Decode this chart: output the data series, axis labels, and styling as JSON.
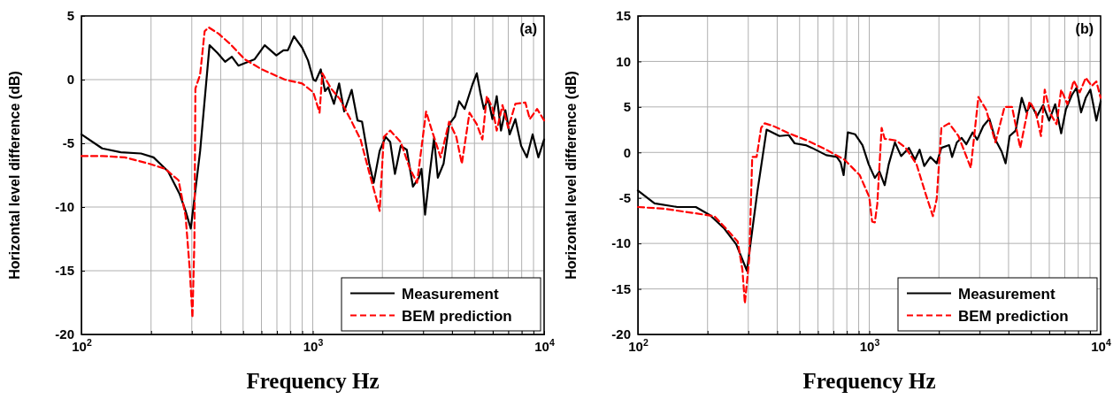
{
  "chart_data": [
    {
      "type": "line",
      "xlabel": "Frequency Hz",
      "ylabel": "Horizontal level difference (dB)",
      "log": "x",
      "grid": true,
      "legend": "bottom right",
      "annotations": [
        "(a)"
      ],
      "xlim": [
        100,
        10000
      ],
      "ylim": [
        -20,
        5
      ],
      "xticks": [
        {
          "value": 100,
          "label": "10$^{2}$"
        },
        {
          "value": 200,
          "label": null
        },
        {
          "value": 300,
          "label": null
        },
        {
          "value": 400,
          "label": null
        },
        {
          "value": 500,
          "label": null
        },
        {
          "value": 600,
          "label": null
        },
        {
          "value": 700,
          "label": null
        },
        {
          "value": 800,
          "label": null
        },
        {
          "value": 900,
          "label": null
        },
        {
          "value": 1000,
          "label": "10$^{3}$"
        },
        {
          "value": 2000,
          "label": null
        },
        {
          "value": 3000,
          "label": null
        },
        {
          "value": 4000,
          "label": null
        },
        {
          "value": 5000,
          "label": null
        },
        {
          "value": 6000,
          "label": null
        },
        {
          "value": 7000,
          "label": null
        },
        {
          "value": 8000,
          "label": null
        },
        {
          "value": 9000,
          "label": null
        },
        {
          "value": 10000,
          "label": "10$^{4}$"
        }
      ],
      "yticks": [
        -20,
        -15,
        -10,
        -5,
        0,
        5
      ],
      "series": [
        {
          "name": "Measurement",
          "color": "#000000",
          "line_style": "solid",
          "x": [
            100,
            123,
            148,
            181,
            205,
            237,
            266,
            282,
            297,
            326,
            358,
            387,
            418,
            447,
            477,
            561,
            620,
            696,
            747,
            780,
            830,
            900,
            954,
            1006,
            1030,
            1083,
            1130,
            1166,
            1235,
            1300,
            1367,
            1473,
            1561,
            1633,
            1755,
            1834,
            1946,
            2065,
            2162,
            2266,
            2400,
            2549,
            2711,
            2873,
            2951,
            3058,
            3196,
            3344,
            3472,
            3676,
            3886,
            4118,
            4291,
            4533,
            4898,
            5116,
            5298,
            5488,
            5727,
            5978,
            6240,
            6512,
            6800,
            7100,
            7512,
            7956,
            8424,
            8920,
            9443,
            10000
          ],
          "values": [
            -4.3,
            -5.4,
            -5.7,
            -5.8,
            -6.1,
            -7.2,
            -9.0,
            -10.3,
            -11.7,
            -5.6,
            2.7,
            2.1,
            1.4,
            1.8,
            1.1,
            1.6,
            2.7,
            1.9,
            2.3,
            2.3,
            3.4,
            2.5,
            1.5,
            0.0,
            -0.1,
            0.8,
            -0.9,
            -0.6,
            -1.9,
            -0.3,
            -2.5,
            -0.8,
            -3.2,
            -3.3,
            -6.6,
            -8.1,
            -5.6,
            -4.5,
            -4.9,
            -7.4,
            -5.2,
            -5.5,
            -8.4,
            -7.7,
            -7.0,
            -10.6,
            -7.5,
            -4.6,
            -7.7,
            -6.6,
            -3.5,
            -2.9,
            -1.7,
            -2.3,
            -0.4,
            0.5,
            -1.0,
            -2.3,
            -1.5,
            -3.1,
            -1.3,
            -4.0,
            -2.4,
            -4.3,
            -3.1,
            -5.2,
            -6.1,
            -4.3,
            -6.1,
            -4.7
          ]
        },
        {
          "name": "BEM prediction",
          "color": "#ff0000",
          "line_style": "dashed",
          "x": [
            100,
            123,
            154,
            196,
            230,
            263,
            282,
            294,
            302,
            308,
            311,
            326,
            341,
            355,
            392,
            440,
            508,
            603,
            758,
            900,
            1006,
            1070,
            1100,
            1200,
            1307,
            1473,
            1609,
            1755,
            1946,
            2028,
            2162,
            2400,
            2631,
            2823,
            3090,
            3248,
            3571,
            3886,
            4174,
            4410,
            4759,
            5116,
            5410,
            5652,
            5978,
            6240,
            6608,
            6996,
            7512,
            8301,
            8672,
            9324,
            10000
          ],
          "values": [
            -6.0,
            -6.0,
            -6.1,
            -6.6,
            -7.0,
            -7.9,
            -10.7,
            -14.9,
            -18.7,
            -12.6,
            -0.7,
            0.4,
            3.8,
            4.1,
            3.6,
            2.8,
            1.6,
            0.8,
            0.0,
            -0.3,
            -1.0,
            -2.6,
            0.5,
            -0.7,
            -1.5,
            -3.3,
            -4.7,
            -7.3,
            -10.3,
            -4.5,
            -4.0,
            -4.9,
            -7.0,
            -8.1,
            -2.5,
            -3.8,
            -6.1,
            -3.3,
            -4.5,
            -6.6,
            -2.6,
            -3.5,
            -4.7,
            -1.3,
            -2.2,
            -4.0,
            -2.0,
            -3.8,
            -1.9,
            -1.8,
            -3.1,
            -2.3,
            -3.2
          ]
        }
      ]
    },
    {
      "type": "line",
      "xlabel": "Frequency Hz",
      "ylabel": "Horizontal level difference (dB)",
      "log": "x",
      "grid": true,
      "legend": "bottom right",
      "annotations": [
        "(b)"
      ],
      "xlim": [
        100,
        10000
      ],
      "ylim": [
        -20,
        15
      ],
      "xticks": [
        {
          "value": 100,
          "label": "10$^{2}$"
        },
        {
          "value": 200,
          "label": null
        },
        {
          "value": 300,
          "label": null
        },
        {
          "value": 400,
          "label": null
        },
        {
          "value": 500,
          "label": null
        },
        {
          "value": 600,
          "label": null
        },
        {
          "value": 700,
          "label": null
        },
        {
          "value": 800,
          "label": null
        },
        {
          "value": 900,
          "label": null
        },
        {
          "value": 1000,
          "label": "10$^{3}$"
        },
        {
          "value": 2000,
          "label": null
        },
        {
          "value": 3000,
          "label": null
        },
        {
          "value": 4000,
          "label": null
        },
        {
          "value": 5000,
          "label": null
        },
        {
          "value": 6000,
          "label": null
        },
        {
          "value": 7000,
          "label": null
        },
        {
          "value": 8000,
          "label": null
        },
        {
          "value": 9000,
          "label": null
        },
        {
          "value": 10000,
          "label": "10$^{4}$"
        }
      ],
      "yticks": [
        -20,
        -15,
        -10,
        -5,
        0,
        5,
        10,
        15
      ],
      "series": [
        {
          "name": "Measurement",
          "color": "#000000",
          "line_style": "solid",
          "x": [
            100,
            118,
            148,
            178,
            205,
            235,
            266,
            296,
            328,
            360,
            409,
            449,
            476,
            531,
            565,
            652,
            724,
            752,
            775,
            808,
            868,
            935,
            994,
            1057,
            1107,
            1166,
            1214,
            1291,
            1373,
            1483,
            1577,
            1651,
            1729,
            1839,
            1957,
            2050,
            2214,
            2281,
            2391,
            2507,
            2628,
            2797,
            2928,
            3110,
            3305,
            3511,
            3734,
            3885,
            4043,
            4293,
            4562,
            4780,
            5005,
            5314,
            5643,
            5991,
            6361,
            6754,
            7073,
            7510,
            7864,
            8235,
            8624,
            9031,
            9589,
            10000
          ],
          "values": [
            -4.2,
            -5.6,
            -6.0,
            -6.0,
            -6.9,
            -8.3,
            -10.1,
            -13.0,
            -4.4,
            2.5,
            1.8,
            1.9,
            1.0,
            0.8,
            0.5,
            -0.3,
            -0.5,
            -1.1,
            -2.5,
            2.2,
            2.0,
            0.8,
            -1.3,
            -2.8,
            -2.1,
            -3.6,
            -1.3,
            1.1,
            -0.4,
            0.5,
            -0.8,
            0.3,
            -1.5,
            -0.5,
            -1.2,
            0.5,
            0.8,
            -0.5,
            1.1,
            1.6,
            0.9,
            2.2,
            1.4,
            2.9,
            3.7,
            1.4,
            0.1,
            -1.2,
            1.8,
            2.4,
            6.0,
            4.4,
            5.3,
            4.0,
            5.2,
            3.5,
            5.3,
            2.1,
            4.7,
            6.3,
            7.1,
            4.4,
            6.0,
            6.9,
            3.5,
            5.6
          ]
        },
        {
          "name": "BEM prediction",
          "color": "#ff0000",
          "line_style": "dashed",
          "x": [
            100,
            131,
            178,
            214,
            243,
            270,
            283,
            290,
            303,
            312,
            326,
            341,
            353,
            385,
            449,
            540,
            652,
            781,
            910,
            1000,
            1029,
            1057,
            1083,
            1131,
            1166,
            1311,
            1437,
            1601,
            1755,
            1884,
            1957,
            2050,
            2214,
            2430,
            2747,
            2963,
            3200,
            3511,
            3843,
            4142,
            4493,
            4927,
            5233,
            5525,
            5734,
            6081,
            6451,
            6754,
            7187,
            7652,
            8124,
            8624,
            9154,
            9589,
            10000
          ],
          "values": [
            -6.0,
            -6.2,
            -6.7,
            -7.0,
            -8.5,
            -9.8,
            -12.9,
            -16.6,
            -11.6,
            -0.5,
            -0.5,
            2.7,
            3.2,
            2.9,
            2.1,
            1.3,
            0.3,
            -0.8,
            -2.5,
            -4.9,
            -7.6,
            -7.7,
            -5.7,
            2.7,
            1.5,
            1.3,
            0.5,
            -1.3,
            -4.6,
            -7.0,
            -5.1,
            2.7,
            3.2,
            1.8,
            -1.7,
            6.1,
            4.7,
            1.1,
            5.0,
            5.0,
            0.5,
            5.6,
            4.5,
            1.8,
            6.9,
            4.2,
            3.1,
            6.9,
            5.3,
            7.9,
            6.6,
            8.2,
            7.3,
            7.8,
            6.0
          ]
        }
      ]
    }
  ]
}
